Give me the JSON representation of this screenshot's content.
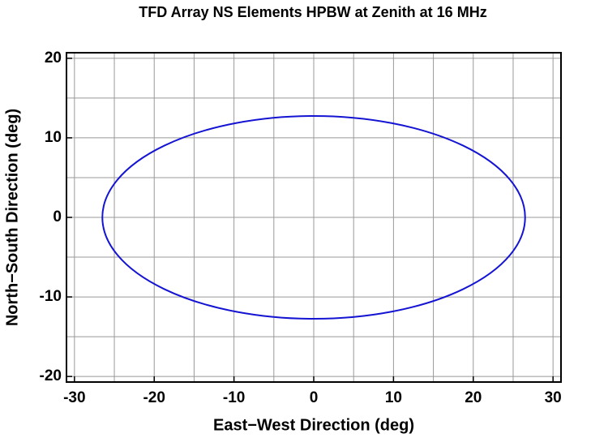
{
  "chart_data": {
    "type": "ellipse",
    "title": "TFD Array NS Elements HPBW at Zenith at 16 MHz",
    "x_label": "East−West Direction (deg)",
    "y_label": "North−South Direction (deg)",
    "center": [
      0,
      0
    ],
    "semi_axes": [
      26.5,
      12.75
    ],
    "color": "#1414d2",
    "xlim": [
      -31,
      31
    ],
    "ylim": [
      -20.7,
      20.7
    ],
    "xticks": [
      -30,
      -20,
      -10,
      0,
      10,
      20,
      30
    ],
    "yticks": [
      -20,
      -10,
      0,
      10,
      20
    ],
    "xgrid": [
      -30,
      -25,
      -20,
      -15,
      -10,
      -5,
      0,
      5,
      10,
      15,
      20,
      25,
      30
    ],
    "ygrid": [
      -20,
      -15,
      -10,
      -5,
      0,
      5,
      10,
      15,
      20
    ],
    "grid": true
  }
}
